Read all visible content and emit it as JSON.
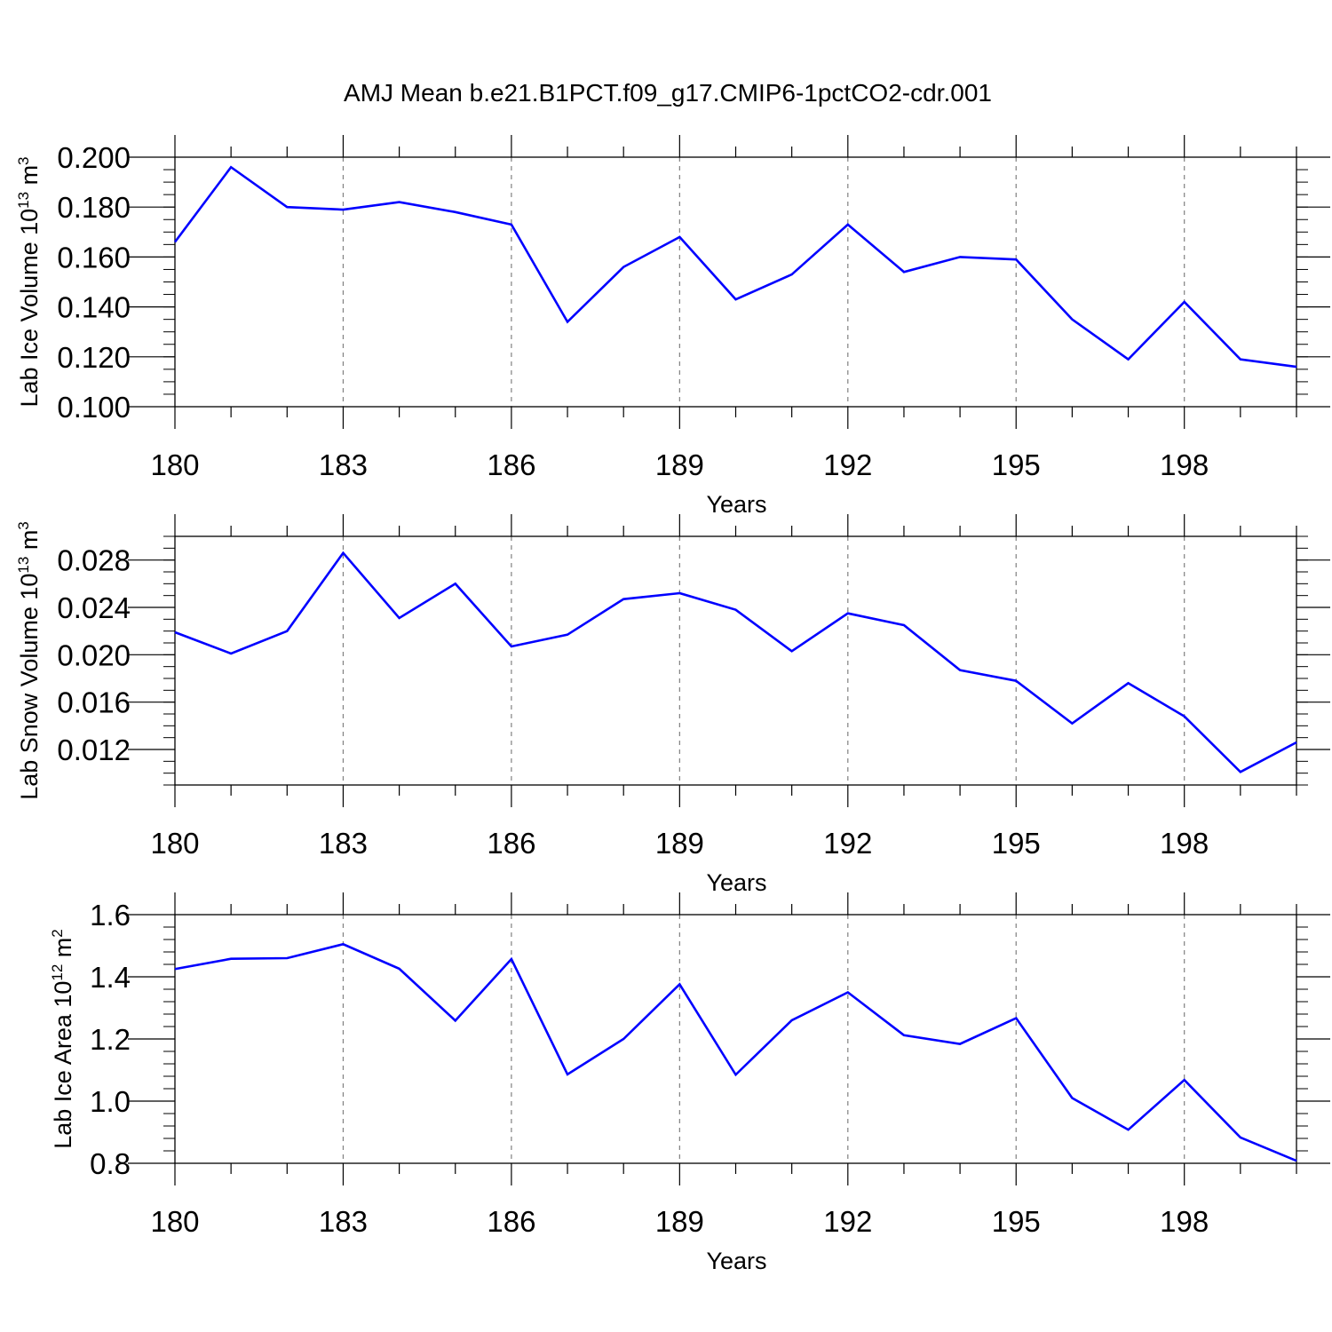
{
  "title": "AMJ Mean b.e21.B1PCT.f09_g17.CMIP6-1pctCO2-cdr.001",
  "colors": {
    "line": "#0000ff",
    "axis": "#000000",
    "grid": "#808080"
  },
  "chart_data": [
    {
      "type": "line",
      "ylabel": {
        "text": "Lab Ice Volume 10",
        "exp": "13",
        "unit": " m",
        "unit_exp": "3"
      },
      "xlabel": "Years",
      "xlim": [
        180,
        200
      ],
      "ylim": [
        0.1,
        0.2
      ],
      "xticks": [
        180,
        183,
        186,
        189,
        192,
        195,
        198
      ],
      "xtick_labels": [
        "180",
        "183",
        "186",
        "189",
        "192",
        "195",
        "198"
      ],
      "yticks": [
        0.1,
        0.12,
        0.14,
        0.16,
        0.18,
        0.2
      ],
      "ytick_labels": [
        "0.100",
        "0.120",
        "0.140",
        "0.160",
        "0.180",
        "0.200"
      ],
      "y_minor_step": 0.005,
      "series": [
        {
          "name": "Lab Ice Volume",
          "x": [
            180,
            181,
            182,
            183,
            184,
            185,
            186,
            187,
            188,
            189,
            190,
            191,
            192,
            193,
            194,
            195,
            196,
            197,
            198,
            199,
            200
          ],
          "values": [
            0.166,
            0.196,
            0.18,
            0.179,
            0.182,
            0.178,
            0.173,
            0.134,
            0.156,
            0.168,
            0.143,
            0.153,
            0.173,
            0.154,
            0.16,
            0.159,
            0.135,
            0.119,
            0.142,
            0.119,
            0.116
          ]
        }
      ]
    },
    {
      "type": "line",
      "ylabel": {
        "text": "Lab Snow Volume 10",
        "exp": "13",
        "unit": " m",
        "unit_exp": "3"
      },
      "xlabel": "Years",
      "xlim": [
        180,
        200
      ],
      "ylim": [
        0.009,
        0.03
      ],
      "xticks": [
        180,
        183,
        186,
        189,
        192,
        195,
        198
      ],
      "xtick_labels": [
        "180",
        "183",
        "186",
        "189",
        "192",
        "195",
        "198"
      ],
      "yticks": [
        0.012,
        0.016,
        0.02,
        0.024,
        0.028
      ],
      "ytick_labels": [
        "0.012",
        "0.016",
        "0.020",
        "0.024",
        "0.028"
      ],
      "y_minor_step": 0.001,
      "series": [
        {
          "name": "Lab Snow Volume",
          "x": [
            180,
            181,
            182,
            183,
            184,
            185,
            186,
            187,
            188,
            189,
            190,
            191,
            192,
            193,
            194,
            195,
            196,
            197,
            198,
            199,
            200
          ],
          "values": [
            0.0219,
            0.0201,
            0.022,
            0.0286,
            0.0231,
            0.026,
            0.0207,
            0.0217,
            0.0247,
            0.0252,
            0.0238,
            0.0203,
            0.0235,
            0.0225,
            0.0187,
            0.0178,
            0.0142,
            0.0176,
            0.0148,
            0.0101,
            0.0126
          ]
        }
      ]
    },
    {
      "type": "line",
      "ylabel": {
        "text": "Lab Ice Area 10",
        "exp": "12",
        "unit": " m",
        "unit_exp": "2"
      },
      "xlabel": "Years",
      "xlim": [
        180,
        200
      ],
      "ylim": [
        0.8,
        1.6
      ],
      "xticks": [
        180,
        183,
        186,
        189,
        192,
        195,
        198
      ],
      "xtick_labels": [
        "180",
        "183",
        "186",
        "189",
        "192",
        "195",
        "198"
      ],
      "yticks": [
        0.8,
        1.0,
        1.2,
        1.4,
        1.6
      ],
      "ytick_labels": [
        "0.8",
        "1.0",
        "1.2",
        "1.4",
        "1.6"
      ],
      "y_minor_step": 0.04,
      "series": [
        {
          "name": "Lab Ice Area",
          "x": [
            180,
            181,
            182,
            183,
            184,
            185,
            186,
            187,
            188,
            189,
            190,
            191,
            192,
            193,
            194,
            195,
            196,
            197,
            198,
            199,
            200
          ],
          "values": [
            1.425,
            1.458,
            1.46,
            1.505,
            1.426,
            1.259,
            1.457,
            1.086,
            1.2,
            1.376,
            1.085,
            1.26,
            1.35,
            1.212,
            1.184,
            1.267,
            1.01,
            0.908,
            1.068,
            0.883,
            0.808
          ]
        }
      ]
    }
  ]
}
